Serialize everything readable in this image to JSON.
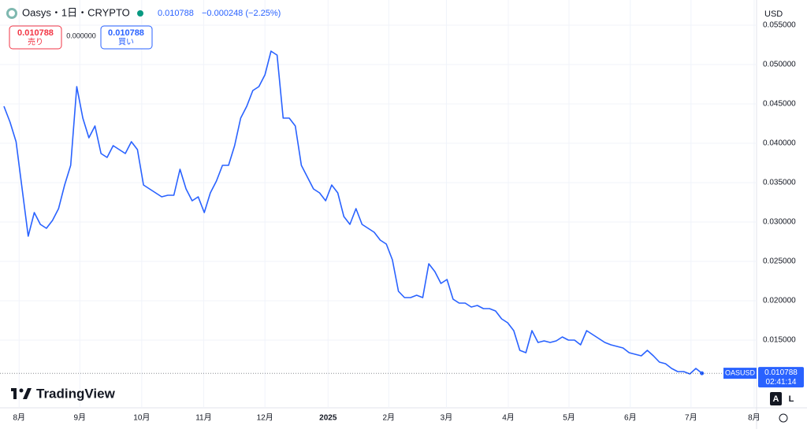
{
  "header": {
    "symbol": "Oasys・1日・CRYPTO",
    "price": "0.010788",
    "change": "−0.000248 (−2.25%)",
    "sell_price": "0.010788",
    "sell_label": "売り",
    "spread": "0.000000",
    "buy_price": "0.010788",
    "buy_label": "買い",
    "currency": "USD",
    "logo": "TradingView",
    "auto_button": "A",
    "log_button": "L"
  },
  "chart_data": {
    "type": "line",
    "series": [
      {
        "name": "OASUSD",
        "color": "#2962ff",
        "values": [
          0.0447,
          0.0427,
          0.0402,
          0.0342,
          0.0282,
          0.0312,
          0.0297,
          0.0292,
          0.0302,
          0.0317,
          0.0347,
          0.0372,
          0.0472,
          0.0432,
          0.0407,
          0.0422,
          0.0387,
          0.0382,
          0.0397,
          0.0392,
          0.0387,
          0.0402,
          0.0392,
          0.0347,
          0.0342,
          0.0337,
          0.0332,
          0.0334,
          0.0334,
          0.0367,
          0.0342,
          0.0327,
          0.0332,
          0.0312,
          0.0337,
          0.0352,
          0.0372,
          0.0372,
          0.0397,
          0.0432,
          0.0447,
          0.0467,
          0.0472,
          0.0487,
          0.0517,
          0.0512,
          0.0432,
          0.0432,
          0.0422,
          0.0372,
          0.0357,
          0.0342,
          0.0337,
          0.0327,
          0.0347,
          0.0337,
          0.0307,
          0.0297,
          0.0317,
          0.0297,
          0.0292,
          0.0287,
          0.0277,
          0.0272,
          0.0252,
          0.0212,
          0.0204,
          0.0204,
          0.0207,
          0.0204,
          0.0247,
          0.0237,
          0.0222,
          0.0227,
          0.0202,
          0.0197,
          0.0197,
          0.0192,
          0.0194,
          0.019,
          0.019,
          0.0187,
          0.0177,
          0.0172,
          0.0162,
          0.0137,
          0.0134,
          0.0162,
          0.0147,
          0.0149,
          0.0147,
          0.0149,
          0.0154,
          0.015,
          0.015,
          0.0144,
          0.0162,
          0.0157,
          0.0152,
          0.0147,
          0.0144,
          0.0142,
          0.014,
          0.0134,
          0.0132,
          0.013,
          0.0137,
          0.013,
          0.0122,
          0.012,
          0.0114,
          0.011,
          0.011,
          0.0107,
          0.0114,
          0.010788
        ]
      }
    ],
    "last_price": {
      "value": 0.010788,
      "label": "0.010788"
    },
    "countdown": "02:41:14",
    "xlim": [
      -0.65,
      124.0
    ],
    "xticks": [
      {
        "value": 2.5,
        "label": "8月"
      },
      {
        "value": 12.5,
        "label": "9月"
      },
      {
        "value": 22.7,
        "label": "10月"
      },
      {
        "value": 32.9,
        "label": "11月"
      },
      {
        "value": 43,
        "label": "12月"
      },
      {
        "value": 53.4,
        "label": "2025"
      },
      {
        "value": 63.4,
        "label": "2月"
      },
      {
        "value": 72.9,
        "label": "3月"
      },
      {
        "value": 83.1,
        "label": "4月"
      },
      {
        "value": 93.1,
        "label": "5月"
      },
      {
        "value": 103.2,
        "label": "6月"
      },
      {
        "value": 113.2,
        "label": "7月"
      },
      {
        "value": 123.6,
        "label": "8月"
      }
    ],
    "ylim": [
      0.0064,
      0.0582
    ],
    "yticks": [
      {
        "value": 0.015,
        "label": "0.015000"
      },
      {
        "value": 0.02,
        "label": "0.020000"
      },
      {
        "value": 0.025,
        "label": "0.025000"
      },
      {
        "value": 0.03,
        "label": "0.030000"
      },
      {
        "value": 0.035,
        "label": "0.035000"
      },
      {
        "value": 0.04,
        "label": "0.040000"
      },
      {
        "value": 0.045,
        "label": "0.045000"
      },
      {
        "value": 0.05,
        "label": "0.050000"
      },
      {
        "value": 0.055,
        "label": "0.055000"
      }
    ],
    "grid": true
  }
}
